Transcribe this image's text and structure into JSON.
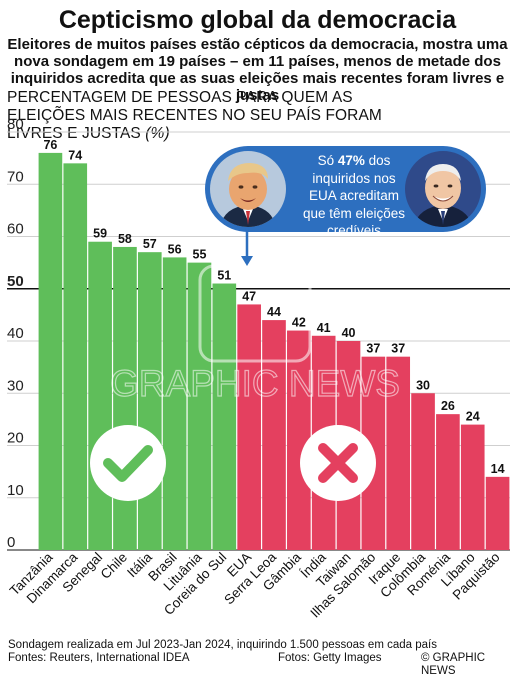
{
  "header": {
    "title": "Cepticismo global da democracia",
    "subtitle": "Eleitores de muitos países estão cépticos da democracia, mostra uma nova sondagem em 19 países – em 11 países, menos de metade dos inquiridos acredita que as suas eleições mais recentes foram livres e justas"
  },
  "chart_data": {
    "type": "bar",
    "ylabel": "PERCENTAGEM DE PESSOAS PARA QUEM AS ELEIÇÕES MAIS RECENTES NO SEU PAÍS FORAM LIVRES E JUSTAS",
    "ylabel_unit": "(%)",
    "ylim": [
      0,
      80
    ],
    "yticks": [
      0,
      10,
      20,
      30,
      40,
      50,
      60,
      70,
      80
    ],
    "highlight_line": 50,
    "grid": true,
    "categories": [
      "Tanzânia",
      "Dinamarca",
      "Senegal",
      "Chile",
      "Itália",
      "Brasil",
      "Lituânia",
      "Coreia do Sul",
      "EUA",
      "Serra Leoa",
      "Gâmbia",
      "Índia",
      "Taiwan",
      "Ilhas Salomão",
      "Iraque",
      "Colômbia",
      "Roménia",
      "Líbano",
      "Paquistão"
    ],
    "values": [
      76,
      74,
      59,
      58,
      57,
      56,
      55,
      51,
      47,
      44,
      42,
      41,
      40,
      37,
      37,
      30,
      26,
      24,
      14
    ],
    "colors": {
      "above": "#5fbe5a",
      "below": "#e4405f"
    }
  },
  "callout": {
    "prefix": "Só ",
    "value": "47%",
    "text": " dos inquiridos nos EUA acreditam que têm eleições credíveis",
    "bg_color": "#2d6fbf"
  },
  "watermark": "GRAPHIC NEWS",
  "footer": {
    "note": "Sondagem realizada em Jul 2023-Jan 2024, inquirindo 1.500 pessoas em cada país",
    "sources": "Fontes: Reuters, International IDEA",
    "photos": "Fotos: Getty Images",
    "credit": "© GRAPHIC NEWS"
  }
}
